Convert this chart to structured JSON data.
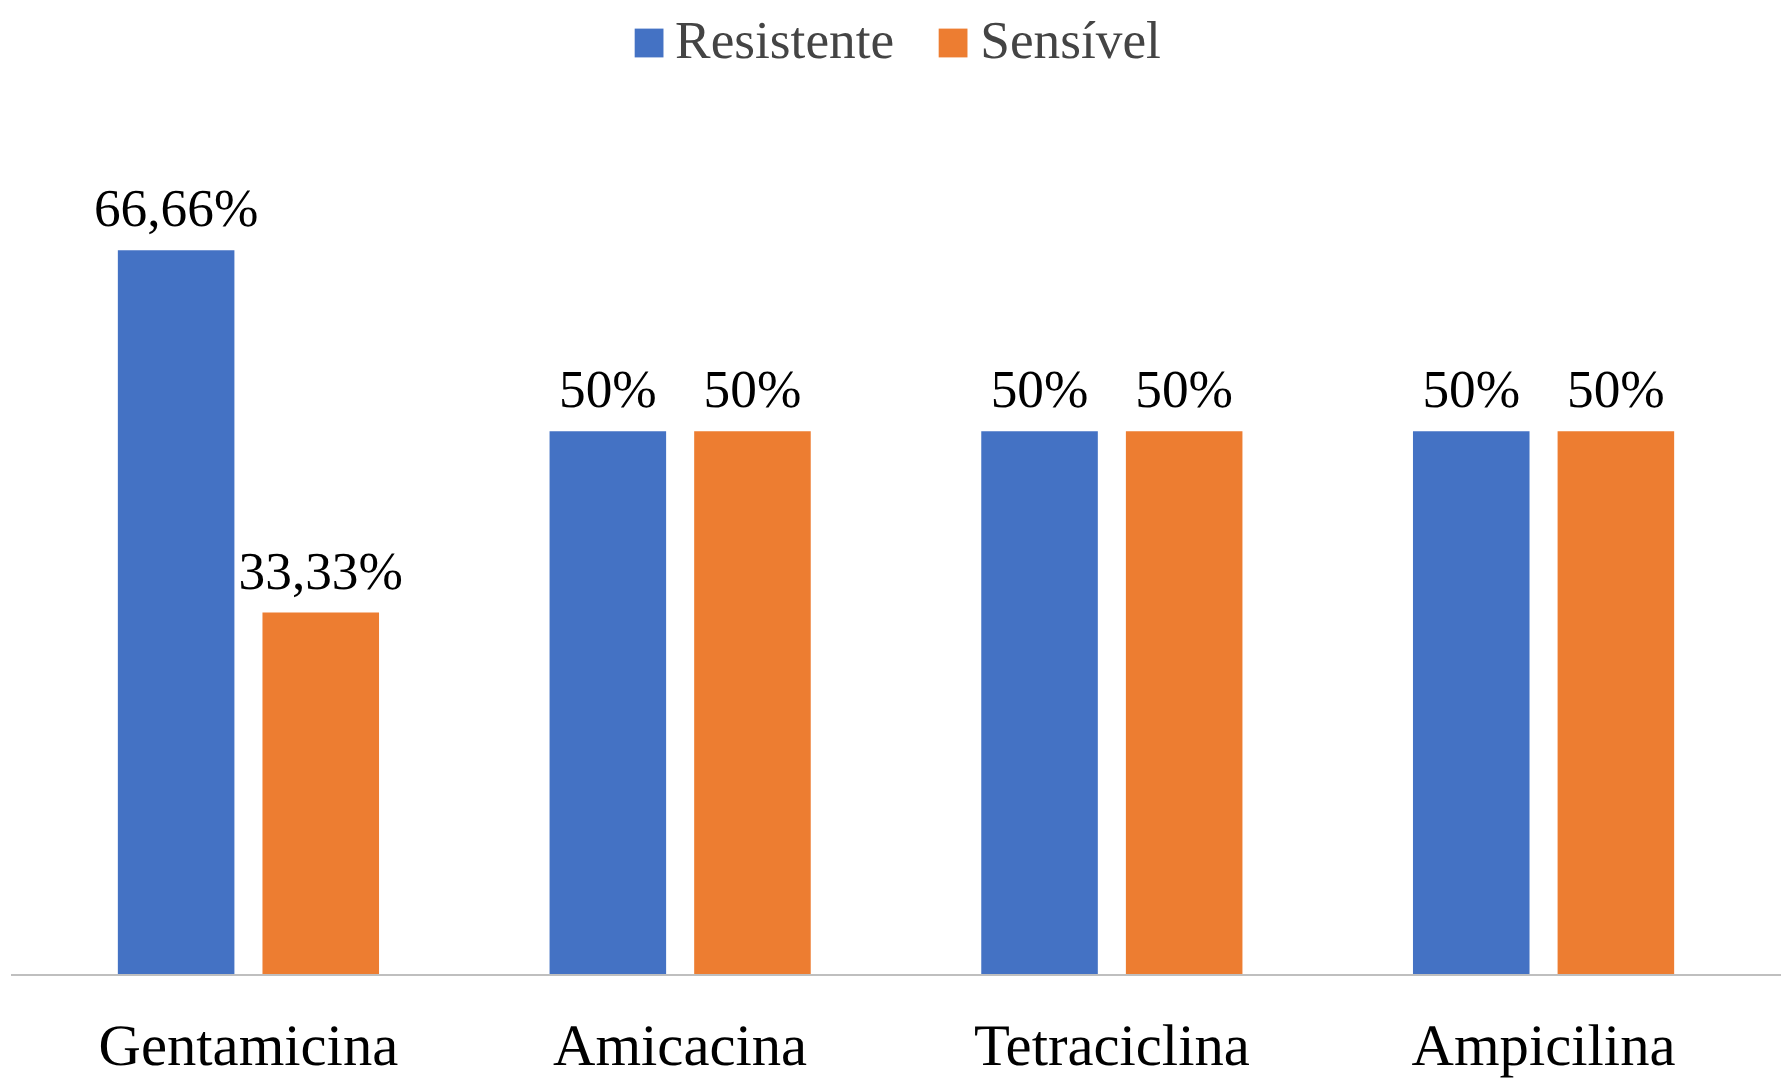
{
  "chart_data": {
    "type": "bar",
    "categories": [
      "Gentamicina",
      "Amicacina",
      "Tetraciclina",
      "Ampicilina"
    ],
    "series": [
      {
        "name": "Resistente",
        "color": "#4472c4",
        "values": [
          66.66,
          50,
          50,
          50
        ],
        "value_labels": [
          "66,66%",
          "50%",
          "50%",
          "50%"
        ]
      },
      {
        "name": "Sensível",
        "color": "#ed7d31",
        "values": [
          33.33,
          50,
          50,
          50
        ],
        "value_labels": [
          "33,33%",
          "50%",
          "50%",
          "50%"
        ]
      }
    ],
    "legend": "top"
  }
}
